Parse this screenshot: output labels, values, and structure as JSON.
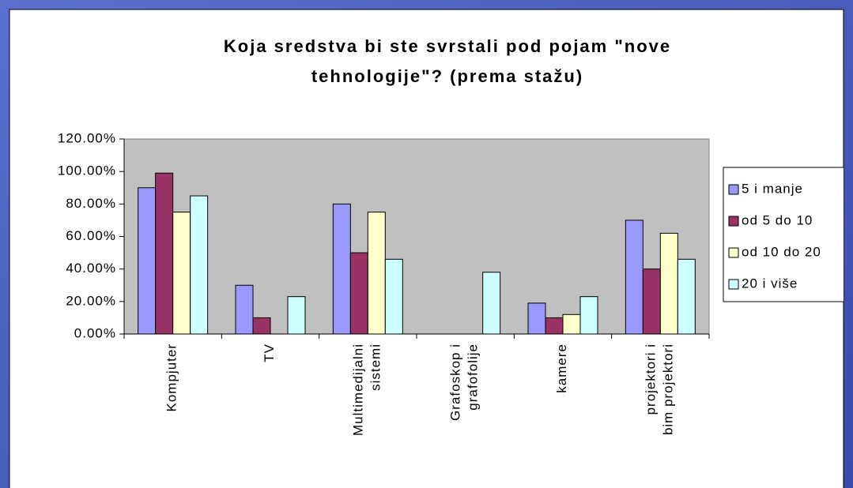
{
  "chart_data": {
    "type": "bar",
    "title": [
      "Koja sredstva bi ste svrstali pod pojam \"nove",
      "tehnologije\"? (prema stažu)"
    ],
    "categories": [
      "Kompjuter",
      "TV",
      "Multimedijalni\nsistemi",
      "Grafoskop i\ngrafofolije",
      "kamere",
      "projektori i\nbim projektori"
    ],
    "series": [
      {
        "name": "5 i manje",
        "color": "#9999ff",
        "values": [
          90,
          30,
          80,
          null,
          19,
          70
        ]
      },
      {
        "name": "od 5 do 10",
        "color": "#993366",
        "values": [
          99,
          10,
          50,
          null,
          10,
          40
        ]
      },
      {
        "name": "od 10 do 20",
        "color": "#ffffcc",
        "values": [
          75,
          null,
          75,
          null,
          12,
          62
        ]
      },
      {
        "name": "20 i više",
        "color": "#ccffff",
        "values": [
          85,
          23,
          46,
          38,
          23,
          46
        ]
      }
    ],
    "ylim": [
      0,
      120
    ],
    "yticks": [
      {
        "value": 0,
        "label": "0.00%"
      },
      {
        "value": 20,
        "label": "20.00%"
      },
      {
        "value": 40,
        "label": "40.00%"
      },
      {
        "value": 60,
        "label": "60.00%"
      },
      {
        "value": 80,
        "label": "80.00%"
      },
      {
        "value": 100,
        "label": "100.00%"
      },
      {
        "value": 120,
        "label": "120.00%"
      }
    ],
    "grid": false,
    "legend": "right"
  }
}
